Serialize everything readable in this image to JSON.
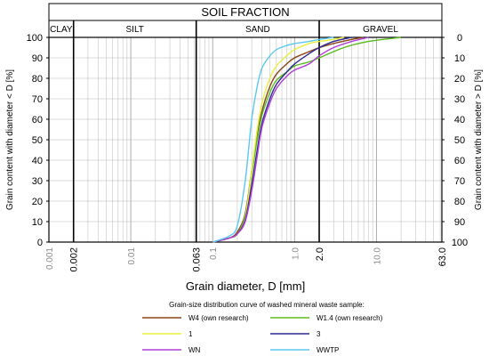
{
  "chart_data": {
    "type": "line",
    "title": "SOIL FRACTION",
    "xlabel": "Grain diameter, D [mm]",
    "ylabel_left": "Grain content with diameter < D [%]",
    "ylabel_right": "Grain content with diameter > D [%]",
    "x_scale": "log",
    "xlim": [
      0.001,
      63.0
    ],
    "ylim": [
      0,
      100
    ],
    "grid": true,
    "fractions": [
      {
        "label": "CLAY",
        "from": 0.001,
        "to": 0.002
      },
      {
        "label": "SILT",
        "from": 0.002,
        "to": 0.063
      },
      {
        "label": "SAND",
        "from": 0.063,
        "to": 2.0
      },
      {
        "label": "GRAVEL",
        "from": 2.0,
        "to": 63.0
      }
    ],
    "x_ticks_grey": [
      {
        "value": 0.001,
        "label": "0.001"
      },
      {
        "value": 0.01,
        "label": "0.01"
      },
      {
        "value": 0.1,
        "label": "0.1"
      },
      {
        "value": 1.0,
        "label": "1.0"
      },
      {
        "value": 10.0,
        "label": "10.0"
      }
    ],
    "x_ticks_black": [
      {
        "value": 0.002,
        "label": "0.002"
      },
      {
        "value": 0.063,
        "label": "0.063"
      },
      {
        "value": 2.0,
        "label": "2.0"
      },
      {
        "value": 63.0,
        "label": "63.0"
      }
    ],
    "y_ticks_left": [
      "0",
      "10",
      "20",
      "30",
      "40",
      "50",
      "60",
      "70",
      "80",
      "90",
      "100"
    ],
    "y_ticks_right": [
      "100",
      "90",
      "80",
      "70",
      "60",
      "50",
      "40",
      "30",
      "20",
      "10",
      "0"
    ],
    "legend_title": "Grain-size distribution curve of washed mineral waste sample:",
    "series": [
      {
        "name": "W4 (own research)",
        "color": "#8B4513",
        "points": [
          [
            0.1,
            0
          ],
          [
            0.16,
            2
          ],
          [
            0.2,
            5
          ],
          [
            0.25,
            14
          ],
          [
            0.3,
            35
          ],
          [
            0.35,
            52
          ],
          [
            0.4,
            64
          ],
          [
            0.5,
            76
          ],
          [
            0.6,
            82
          ],
          [
            0.8,
            87
          ],
          [
            1.0,
            90
          ],
          [
            1.5,
            93
          ],
          [
            2.0,
            95
          ],
          [
            3.0,
            97
          ],
          [
            5.0,
            99
          ],
          [
            7.0,
            100
          ]
        ]
      },
      {
        "name": "W1.4 (own research)",
        "color": "#5BBA21",
        "points": [
          [
            0.1,
            0
          ],
          [
            0.16,
            2
          ],
          [
            0.2,
            4
          ],
          [
            0.25,
            13
          ],
          [
            0.3,
            33
          ],
          [
            0.35,
            50
          ],
          [
            0.4,
            62
          ],
          [
            0.5,
            73
          ],
          [
            0.6,
            79
          ],
          [
            0.8,
            83
          ],
          [
            1.0,
            86
          ],
          [
            1.5,
            88
          ],
          [
            2.0,
            90
          ],
          [
            4.0,
            95
          ],
          [
            8.0,
            98
          ],
          [
            20.0,
            100
          ]
        ]
      },
      {
        "name": "1",
        "color": "#E8F040",
        "points": [
          [
            0.1,
            0
          ],
          [
            0.16,
            2
          ],
          [
            0.2,
            4
          ],
          [
            0.25,
            12
          ],
          [
            0.3,
            35
          ],
          [
            0.35,
            55
          ],
          [
            0.4,
            68
          ],
          [
            0.5,
            80
          ],
          [
            0.6,
            86
          ],
          [
            0.8,
            91
          ],
          [
            1.0,
            94
          ],
          [
            1.5,
            97
          ],
          [
            2.0,
            98
          ],
          [
            3.0,
            99
          ],
          [
            4.0,
            100
          ]
        ]
      },
      {
        "name": "3",
        "color": "#2E2A8F",
        "points": [
          [
            0.1,
            0
          ],
          [
            0.16,
            2
          ],
          [
            0.2,
            4
          ],
          [
            0.25,
            11
          ],
          [
            0.3,
            28
          ],
          [
            0.35,
            45
          ],
          [
            0.4,
            58
          ],
          [
            0.5,
            70
          ],
          [
            0.6,
            77
          ],
          [
            0.8,
            83
          ],
          [
            1.0,
            87
          ],
          [
            1.5,
            92
          ],
          [
            2.0,
            95
          ],
          [
            3.0,
            98
          ],
          [
            5.0,
            100
          ]
        ]
      },
      {
        "name": "WN",
        "color": "#B040D8",
        "points": [
          [
            0.1,
            0
          ],
          [
            0.16,
            2
          ],
          [
            0.2,
            4
          ],
          [
            0.25,
            10
          ],
          [
            0.3,
            25
          ],
          [
            0.35,
            42
          ],
          [
            0.4,
            56
          ],
          [
            0.5,
            68
          ],
          [
            0.6,
            75
          ],
          [
            0.8,
            81
          ],
          [
            1.0,
            84
          ],
          [
            1.5,
            87
          ],
          [
            2.0,
            91
          ],
          [
            3.0,
            95
          ],
          [
            5.0,
            98
          ],
          [
            8.0,
            100
          ]
        ]
      },
      {
        "name": "WWTP",
        "color": "#5CC8F0",
        "points": [
          [
            0.1,
            0
          ],
          [
            0.16,
            3
          ],
          [
            0.2,
            8
          ],
          [
            0.25,
            30
          ],
          [
            0.3,
            60
          ],
          [
            0.35,
            76
          ],
          [
            0.4,
            85
          ],
          [
            0.5,
            91
          ],
          [
            0.6,
            94
          ],
          [
            0.8,
            96
          ],
          [
            1.0,
            97
          ],
          [
            1.5,
            98
          ],
          [
            2.0,
            99
          ],
          [
            3.0,
            100
          ]
        ]
      }
    ]
  },
  "colors": {
    "axis": "#000000",
    "grid_minor": "#b8b8b8",
    "grid_major": "#9a9a9a",
    "grey_tick_text": "#888888"
  }
}
